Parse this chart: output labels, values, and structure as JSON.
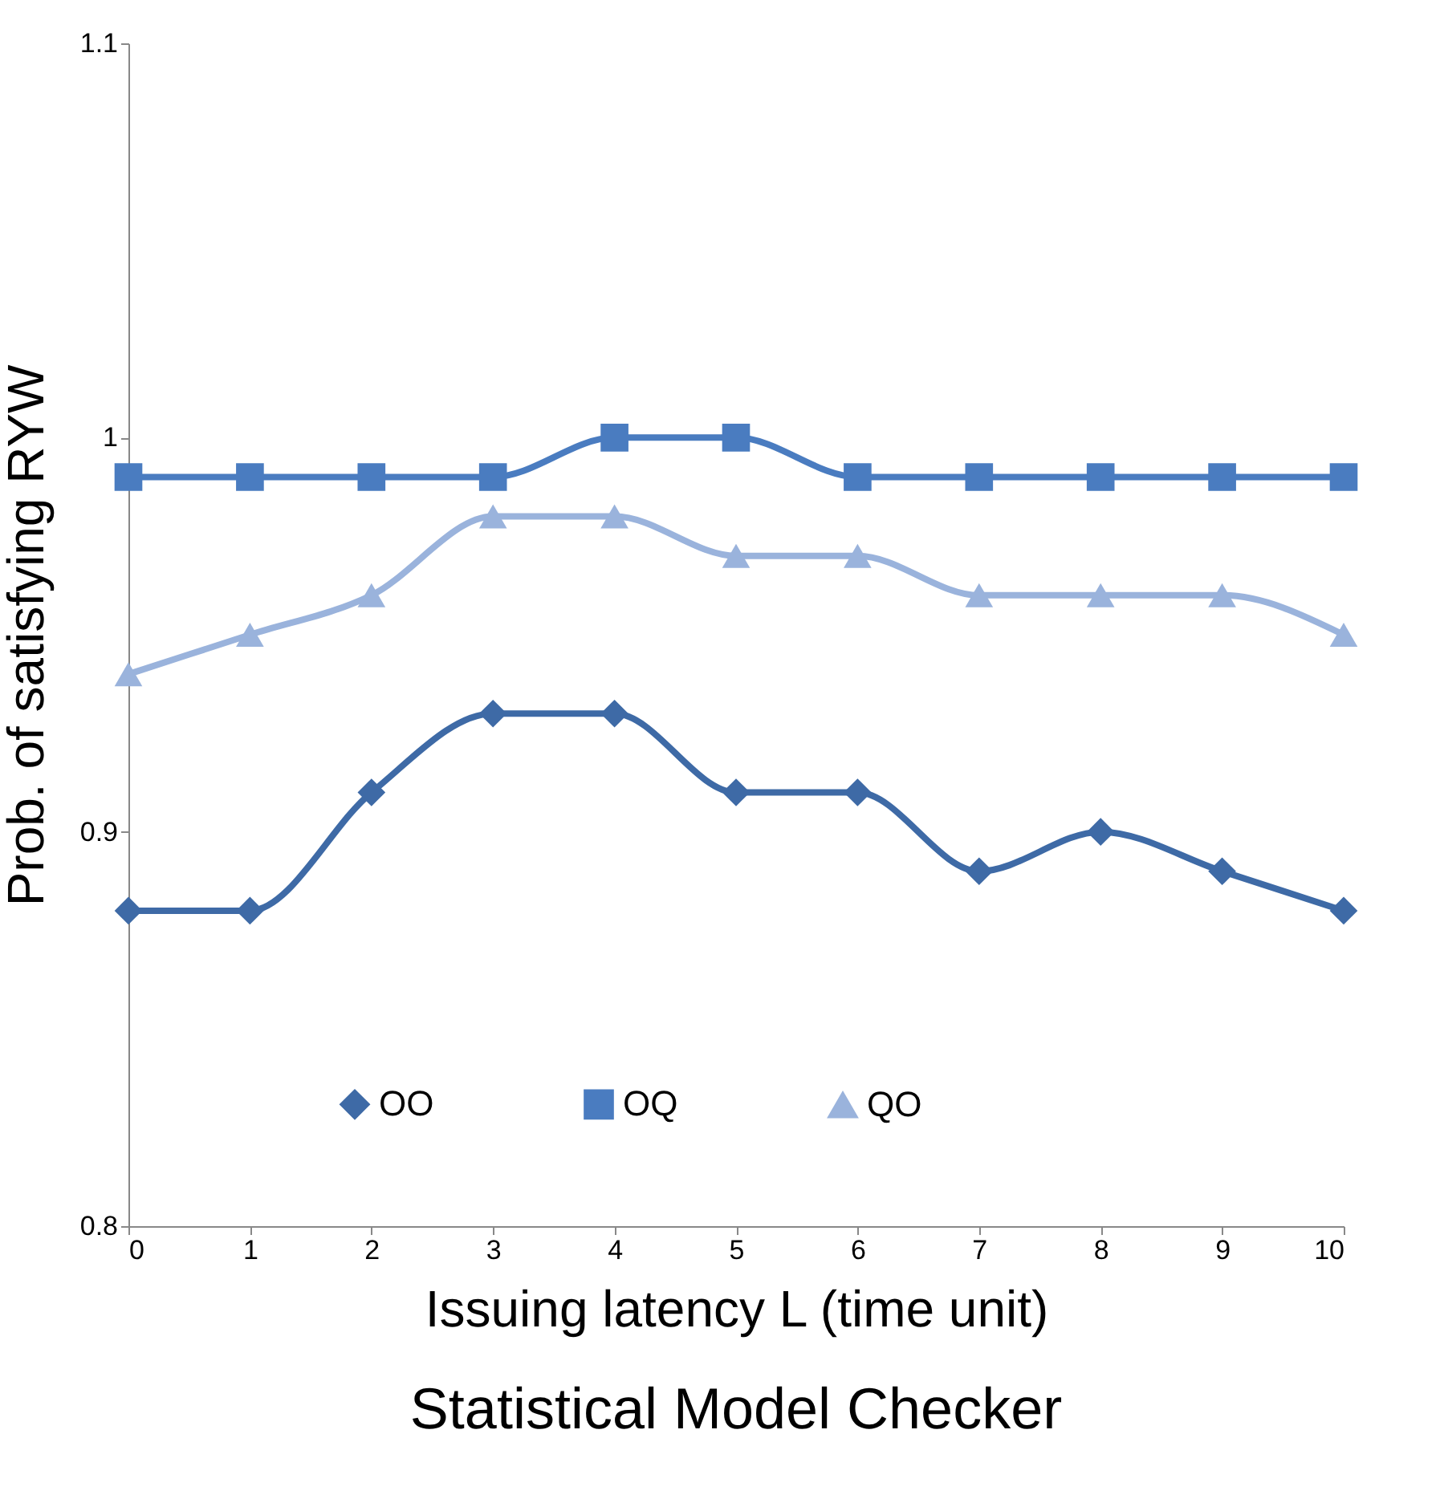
{
  "chart_data": {
    "type": "line",
    "title": "Statistical Model Checker",
    "xlabel": "Issuing latency L (time unit)",
    "ylabel": "Prob. of satisfying  RYW",
    "x": [
      0,
      1,
      2,
      3,
      4,
      5,
      6,
      7,
      8,
      9,
      10
    ],
    "series": [
      {
        "name": "OO",
        "color": "#3e6aa6",
        "marker": "diamond",
        "values": [
          0.88,
          0.88,
          0.91,
          0.93,
          0.93,
          0.91,
          0.91,
          0.89,
          0.9,
          0.89,
          0.88
        ]
      },
      {
        "name": "OQ",
        "color": "#4a7cc0",
        "marker": "square",
        "values": [
          0.99,
          0.99,
          0.99,
          0.99,
          1.0,
          1.0,
          0.99,
          0.99,
          0.99,
          0.99,
          0.99
        ]
      },
      {
        "name": "QO",
        "color": "#9ab3dc",
        "marker": "triangle",
        "values": [
          0.94,
          0.95,
          0.96,
          0.98,
          0.98,
          0.97,
          0.97,
          0.96,
          0.96,
          0.96,
          0.95
        ]
      }
    ],
    "xlim": [
      0,
      10
    ],
    "xticks": [
      0,
      1,
      2,
      3,
      4,
      5,
      6,
      7,
      8,
      9,
      10
    ],
    "ylim": [
      0.8,
      1.1
    ],
    "yticks": [
      0.8,
      0.9,
      1,
      1.1
    ],
    "grid": false,
    "legend": "bottom",
    "line_style": "solid"
  }
}
